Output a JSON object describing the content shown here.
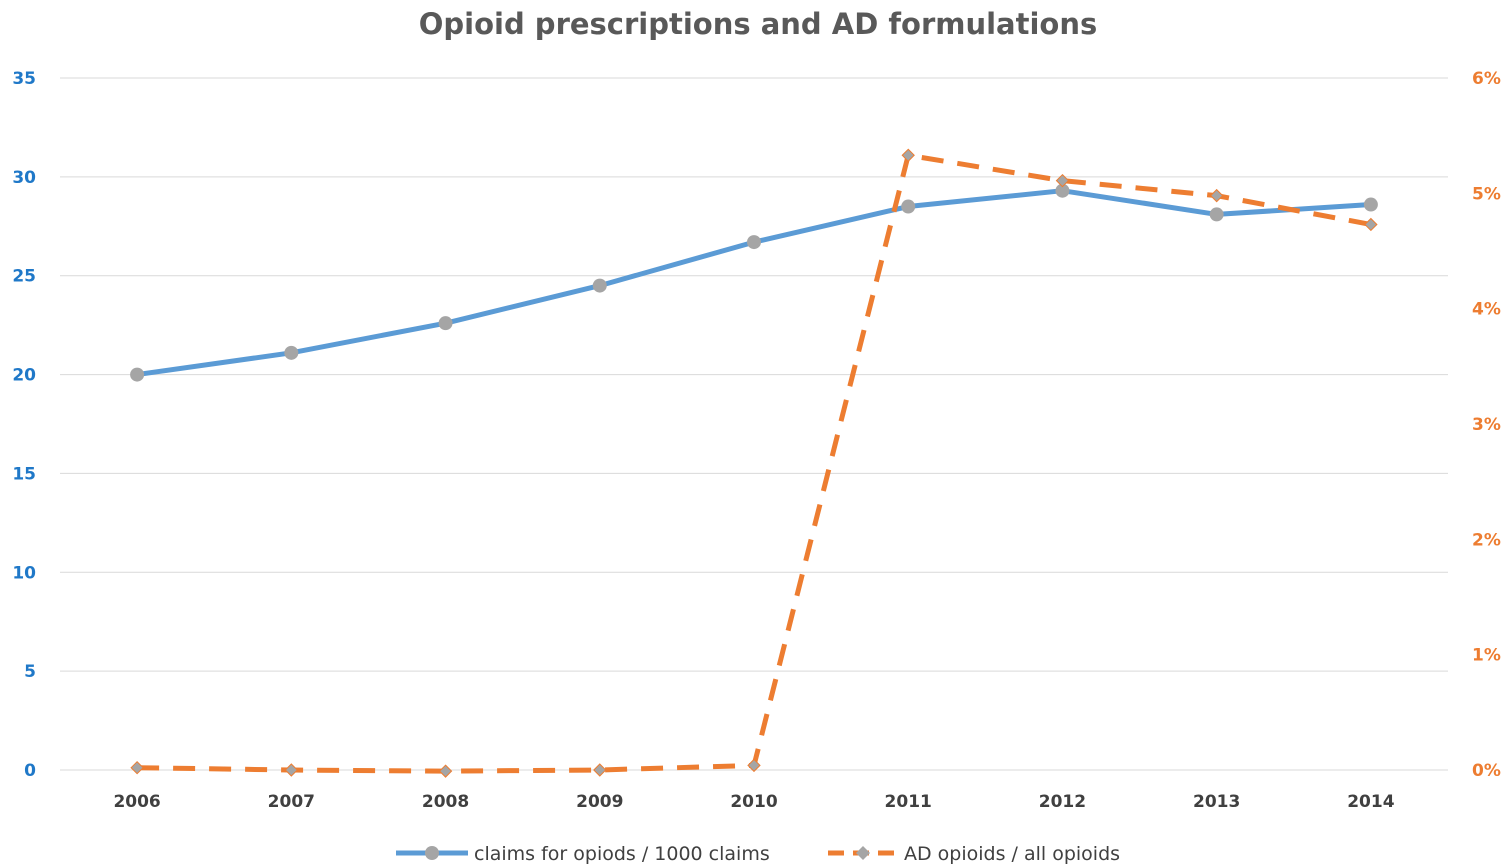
{
  "chart_data": {
    "type": "line",
    "title": "Opioid prescriptions and AD formulations",
    "categories": [
      "2006",
      "2007",
      "2008",
      "2009",
      "2010",
      "2011",
      "2012",
      "2013",
      "2014"
    ],
    "series": [
      {
        "name": "claims for opiods / 1000 claims",
        "axis": "left",
        "values": [
          20.0,
          21.1,
          22.6,
          24.5,
          26.7,
          28.5,
          29.3,
          28.1,
          28.6
        ],
        "color": "#5b9bd5",
        "marker": "circle",
        "marker_color": "#a5a5a5",
        "line_style": "solid"
      },
      {
        "name": "AD opioids / all opioids",
        "axis": "right",
        "values": [
          0.02,
          0.0,
          -0.01,
          0.0,
          0.04,
          5.33,
          5.11,
          4.98,
          4.73
        ],
        "color": "#ed7d31",
        "marker": "diamond",
        "marker_color": "#a5a5a5",
        "line_style": "dashed"
      }
    ],
    "y_left": {
      "ylim": [
        0,
        35
      ],
      "ticks": [
        "0",
        "5",
        "10",
        "15",
        "20",
        "25",
        "30",
        "35"
      ],
      "color": "#1f78c8"
    },
    "y_right": {
      "ylim": [
        0,
        6
      ],
      "ticks": [
        "0%",
        "1%",
        "2%",
        "3%",
        "4%",
        "5%",
        "6%"
      ],
      "color": "#ed7d31"
    },
    "grid": true,
    "legend_position": "bottom"
  }
}
